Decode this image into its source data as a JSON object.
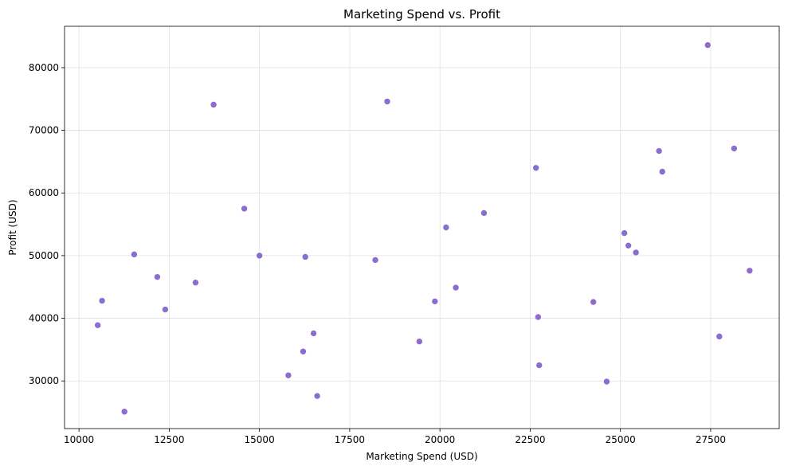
{
  "chart_data": {
    "type": "scatter",
    "title": "Marketing Spend vs. Profit",
    "xlabel": "Marketing Spend (USD)",
    "ylabel": "Profit (USD)",
    "xlim": [
      9600,
      29400
    ],
    "ylim": [
      22400,
      86600
    ],
    "xticks": [
      10000,
      12500,
      15000,
      17500,
      20000,
      22500,
      25000,
      27500
    ],
    "yticks": [
      30000,
      40000,
      50000,
      60000,
      70000,
      80000
    ],
    "grid": true,
    "marker_color": "#8b6ccf",
    "points": [
      {
        "x": 10520,
        "y": 38900
      },
      {
        "x": 10640,
        "y": 42800
      },
      {
        "x": 11260,
        "y": 25100
      },
      {
        "x": 11530,
        "y": 50200
      },
      {
        "x": 12170,
        "y": 46600
      },
      {
        "x": 12390,
        "y": 41400
      },
      {
        "x": 13230,
        "y": 45700
      },
      {
        "x": 13730,
        "y": 74100
      },
      {
        "x": 14580,
        "y": 57500
      },
      {
        "x": 15000,
        "y": 50000
      },
      {
        "x": 15800,
        "y": 30900
      },
      {
        "x": 16210,
        "y": 34700
      },
      {
        "x": 16270,
        "y": 49800
      },
      {
        "x": 16500,
        "y": 37600
      },
      {
        "x": 16600,
        "y": 27600
      },
      {
        "x": 18210,
        "y": 49300
      },
      {
        "x": 18540,
        "y": 74600
      },
      {
        "x": 19430,
        "y": 36300
      },
      {
        "x": 19860,
        "y": 42700
      },
      {
        "x": 20170,
        "y": 54500
      },
      {
        "x": 20440,
        "y": 44900
      },
      {
        "x": 21220,
        "y": 56800
      },
      {
        "x": 22660,
        "y": 64000
      },
      {
        "x": 22720,
        "y": 40200
      },
      {
        "x": 22750,
        "y": 32500
      },
      {
        "x": 24250,
        "y": 42600
      },
      {
        "x": 24620,
        "y": 29900
      },
      {
        "x": 25110,
        "y": 53600
      },
      {
        "x": 25220,
        "y": 51600
      },
      {
        "x": 25430,
        "y": 50500
      },
      {
        "x": 26070,
        "y": 66700
      },
      {
        "x": 26160,
        "y": 63400
      },
      {
        "x": 27420,
        "y": 83600
      },
      {
        "x": 27740,
        "y": 37100
      },
      {
        "x": 28150,
        "y": 67100
      },
      {
        "x": 28580,
        "y": 47600
      }
    ]
  }
}
